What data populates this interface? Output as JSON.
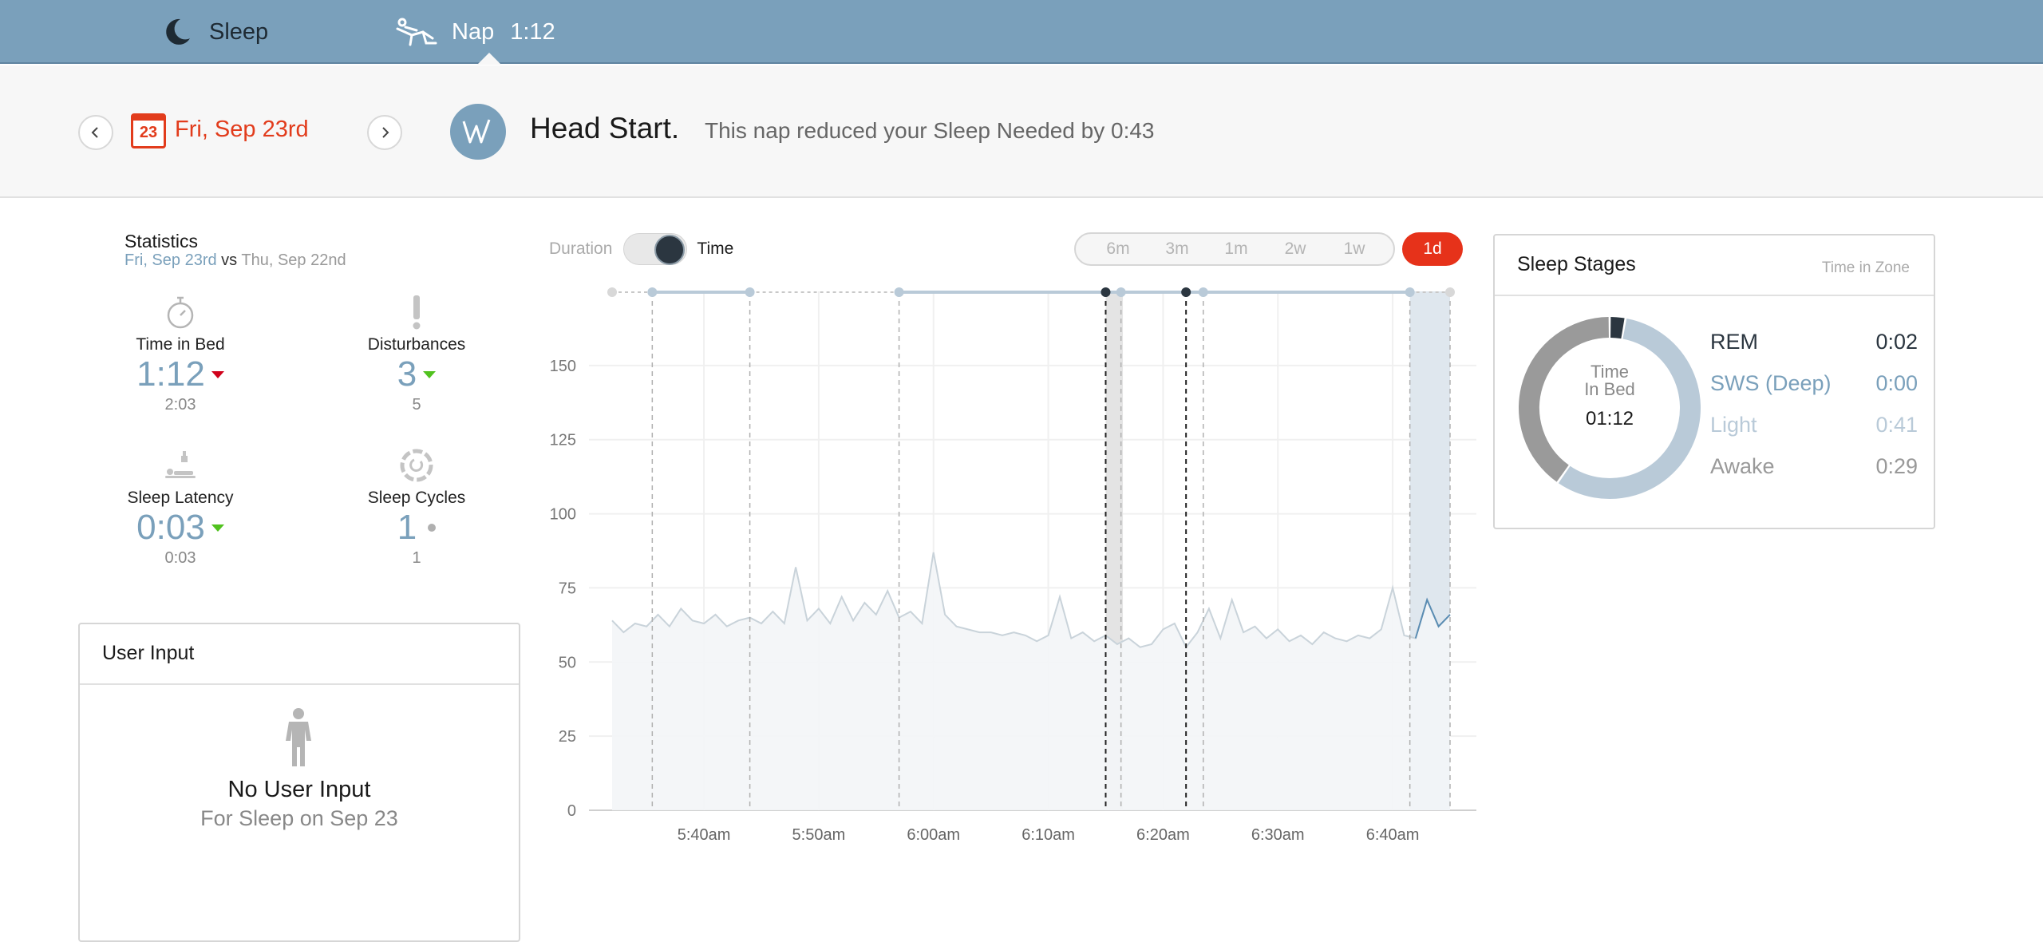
{
  "tabs": {
    "sleep_label": "Sleep",
    "nap_label": "Nap",
    "nap_time": "1:12"
  },
  "header": {
    "calendar_day": "23",
    "date": "Fri, Sep 23rd",
    "title": "Head Start.",
    "message": "This nap reduced your Sleep Needed by 0:43"
  },
  "statistics": {
    "title": "Statistics",
    "current_date": "Fri, Sep 23rd",
    "vs": "vs",
    "compare_date": "Thu, Sep 22nd",
    "items": [
      {
        "label": "Time in Bed",
        "value": "1:12",
        "previous": "2:03",
        "trend": "up-red",
        "icon": "stopwatch-icon"
      },
      {
        "label": "Disturbances",
        "value": "3",
        "previous": "5",
        "trend": "down-green",
        "icon": "exclamation-icon"
      },
      {
        "label": "Sleep Latency",
        "value": "0:03",
        "previous": "0:03",
        "trend": "down-green",
        "icon": "sleeper-icon"
      },
      {
        "label": "Sleep Cycles",
        "value": "1",
        "previous": "1",
        "trend": "neutral",
        "icon": "cycle-icon"
      }
    ]
  },
  "user_input": {
    "title": "User Input",
    "empty_title": "No User Input",
    "empty_subtitle": "For Sleep on Sep 23"
  },
  "chart_controls": {
    "duration_label": "Duration",
    "time_label": "Time",
    "toggle_state": "time",
    "ranges": [
      "6m",
      "3m",
      "1m",
      "2w",
      "1w"
    ],
    "active_range": "1d"
  },
  "chart_data": {
    "type": "area",
    "title": "",
    "xlabel": "",
    "ylabel": "",
    "ylim": [
      0,
      175
    ],
    "yticks": [
      0,
      25,
      50,
      75,
      100,
      125,
      150
    ],
    "xticks": [
      "5:40am",
      "5:50am",
      "6:00am",
      "6:10am",
      "6:20am",
      "6:30am",
      "6:40am"
    ],
    "x_start": "5:32am",
    "x_end": "6:45am",
    "series": [
      {
        "points": [
          [
            "5:32am",
            64
          ],
          [
            "5:33am",
            60
          ],
          [
            "5:34am",
            63
          ],
          [
            "5:35am",
            62
          ],
          [
            "5:36am",
            66
          ],
          [
            "5:37am",
            62
          ],
          [
            "5:38am",
            68
          ],
          [
            "5:39am",
            64
          ],
          [
            "5:40am",
            63
          ],
          [
            "5:41am",
            66
          ],
          [
            "5:42am",
            62
          ],
          [
            "5:43am",
            64
          ],
          [
            "5:44am",
            65
          ],
          [
            "5:45am",
            63
          ],
          [
            "5:46am",
            67
          ],
          [
            "5:47am",
            63
          ],
          [
            "5:48am",
            82
          ],
          [
            "5:49am",
            64
          ],
          [
            "5:50am",
            68
          ],
          [
            "5:51am",
            63
          ],
          [
            "5:52am",
            72
          ],
          [
            "5:53am",
            64
          ],
          [
            "5:54am",
            70
          ],
          [
            "5:55am",
            66
          ],
          [
            "5:56am",
            74
          ],
          [
            "5:57am",
            65
          ],
          [
            "5:58am",
            67
          ],
          [
            "5:59am",
            63
          ],
          [
            "6:00am",
            87
          ],
          [
            "6:01am",
            66
          ],
          [
            "6:02am",
            62
          ],
          [
            "6:03am",
            61
          ],
          [
            "6:04am",
            60
          ],
          [
            "6:05am",
            60
          ],
          [
            "6:06am",
            59
          ],
          [
            "6:07am",
            60
          ],
          [
            "6:08am",
            59
          ],
          [
            "6:09am",
            57
          ],
          [
            "6:10am",
            59
          ],
          [
            "6:11am",
            72
          ],
          [
            "6:12am",
            58
          ],
          [
            "6:13am",
            60
          ],
          [
            "6:14am",
            57
          ],
          [
            "6:15am",
            59
          ],
          [
            "6:16am",
            56
          ],
          [
            "6:17am",
            58
          ],
          [
            "6:18am",
            55
          ],
          [
            "6:19am",
            56
          ],
          [
            "6:20am",
            61
          ],
          [
            "6:21am",
            63
          ],
          [
            "6:22am",
            55
          ],
          [
            "6:23am",
            60
          ],
          [
            "6:24am",
            68
          ],
          [
            "6:25am",
            58
          ],
          [
            "6:26am",
            71
          ],
          [
            "6:27am",
            60
          ],
          [
            "6:28am",
            62
          ],
          [
            "6:29am",
            58
          ],
          [
            "6:30am",
            61
          ],
          [
            "6:31am",
            57
          ],
          [
            "6:32am",
            59
          ],
          [
            "6:33am",
            56
          ],
          [
            "6:34am",
            60
          ],
          [
            "6:35am",
            58
          ],
          [
            "6:36am",
            57
          ],
          [
            "6:37am",
            59
          ],
          [
            "6:38am",
            58
          ],
          [
            "6:39am",
            61
          ],
          [
            "6:40am",
            75
          ],
          [
            "6:41am",
            59
          ],
          [
            "6:42am",
            58
          ],
          [
            "6:43am",
            71
          ],
          [
            "6:44am",
            62
          ],
          [
            "6:45am",
            66
          ]
        ]
      }
    ],
    "markers": [
      {
        "time": "5:32am",
        "kind": "start"
      },
      {
        "time": "5:35:30am",
        "kind": "light"
      },
      {
        "time": "5:44am",
        "kind": "light"
      },
      {
        "time": "5:57am",
        "kind": "light"
      },
      {
        "time": "6:15am",
        "kind": "rem"
      },
      {
        "time": "6:16:20am",
        "kind": "light"
      },
      {
        "time": "6:22am",
        "kind": "rem"
      },
      {
        "time": "6:23:30am",
        "kind": "light"
      },
      {
        "time": "6:41:30am",
        "kind": "light"
      },
      {
        "time": "6:45am",
        "kind": "end"
      }
    ],
    "shaded_regions": [
      {
        "from": "6:15am",
        "to": "6:16:30am",
        "color": "#e4e4e4"
      },
      {
        "from": "6:41:30am",
        "to": "6:45am",
        "color": "#dfe7ee"
      }
    ],
    "colors": {
      "line": "#c9d3da",
      "fill": "#f3f5f7",
      "rem": "#2b3640",
      "light": "#b9cad8",
      "awake_segment": "#5b8db3"
    }
  },
  "sleep_stages": {
    "title": "Sleep Stages",
    "subtitle": "Time in Zone",
    "center_label_1": "Time",
    "center_label_2": "In Bed",
    "center_value": "01:12",
    "stages": [
      {
        "name": "REM",
        "value": "0:02",
        "color": "#2b3640",
        "fraction": 0.028
      },
      {
        "name": "SWS (Deep)",
        "value": "0:00",
        "color": "#7aa0bb",
        "fraction": 0.0
      },
      {
        "name": "Light",
        "value": "0:41",
        "color": "#b9cad8",
        "fraction": 0.569
      },
      {
        "name": "Awake",
        "value": "0:29",
        "color": "#9a9a9a",
        "fraction": 0.403
      }
    ]
  },
  "colors": {
    "topbar": "#7aa0bb",
    "accent_red": "#e6321a",
    "brand_blue": "#7aa0bb"
  }
}
